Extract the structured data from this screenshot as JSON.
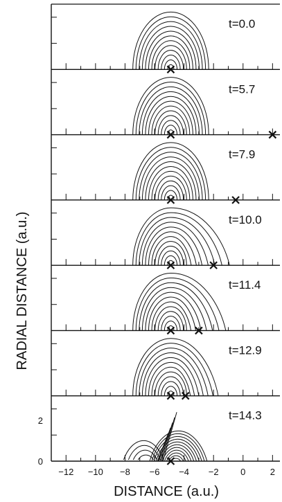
{
  "chart_data": {
    "type": "contour",
    "xlabel": "DISTANCE  (a.u.)",
    "ylabel": "RADIAL  DISTANCE  (a.u.)",
    "xlim": [
      -13,
      2.5
    ],
    "ylim_bottom_panel": [
      0,
      3.2
    ],
    "x_ticks": [
      -12,
      -10,
      -8,
      -6,
      -4,
      -2,
      0,
      2
    ],
    "x_tick_labels": [
      "−12",
      "−10",
      "−8",
      "−6",
      "−4",
      "−2",
      "0",
      "2"
    ],
    "y_tick_labels": [
      "0",
      "2"
    ],
    "y_ticks": [
      0,
      2
    ],
    "panels": [
      {
        "label": "t=0.0",
        "nucleus_x": -4.9,
        "projectile_x": -4.9,
        "distortion": 0.0
      },
      {
        "label": "t=5.7",
        "nucleus_x": -4.9,
        "projectile_x": 2.0,
        "distortion": 0.0
      },
      {
        "label": "t=7.9",
        "nucleus_x": -4.9,
        "projectile_x": -0.5,
        "distortion": 0.0
      },
      {
        "label": "t=10.0",
        "nucleus_x": -4.9,
        "projectile_x": -2.0,
        "distortion": 0.55
      },
      {
        "label": "t=11.4",
        "nucleus_x": -4.9,
        "projectile_x": -3.0,
        "distortion": 0.45
      },
      {
        "label": "t=12.9",
        "nucleus_x": -4.9,
        "projectile_x": -3.9,
        "distortion": 0.25
      },
      {
        "label": "t=14.3",
        "nucleus_x": -4.9,
        "projectile_x": -4.9,
        "distortion": 0.0,
        "split": true
      }
    ]
  }
}
